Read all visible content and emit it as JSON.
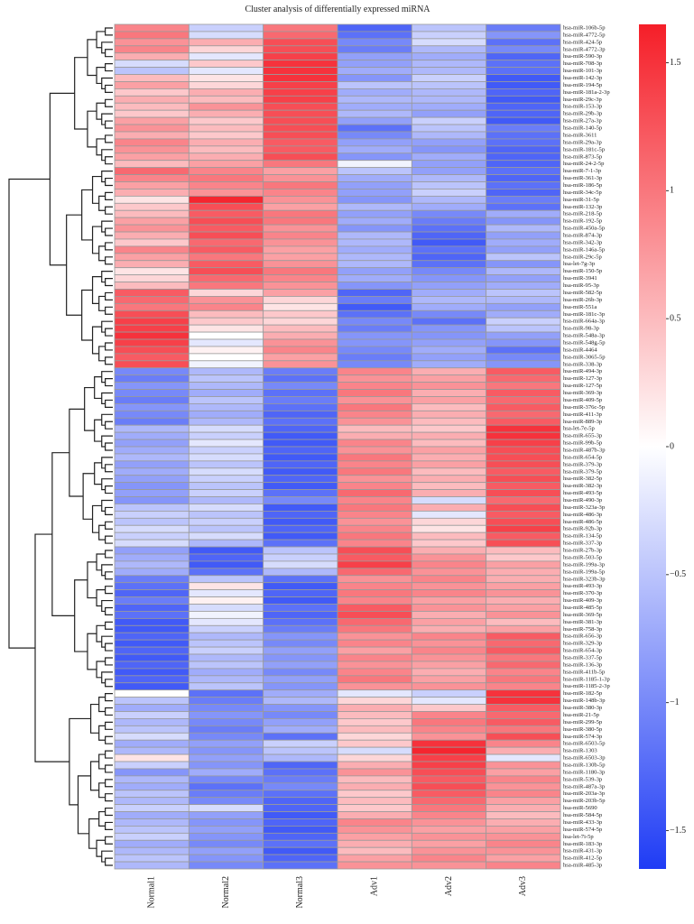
{
  "chart_data": {
    "type": "heatmap",
    "title": "Cluster analysis of differentially expressed miRNA",
    "columns": [
      "Normal1",
      "Normal2",
      "Normal3",
      "Adv1",
      "Adv2",
      "Adv3"
    ],
    "rows": [
      "hsa-miR-106b-5p",
      "hsa-miR-4772-5p",
      "hsa-miR-424-5p",
      "hsa-miR-4772-3p",
      "hsa-miR-590-3p",
      "hsa-miR-708-3p",
      "hsa-miR-101-3p",
      "hsa-miR-142-3p",
      "hsa-miR-194-5p",
      "hsa-miR-181a-2-3p",
      "hsa-miR-29c-3p",
      "hsa-miR-153-3p",
      "hsa-miR-29b-3p",
      "hsa-miR-27a-3p",
      "hsa-miR-140-5p",
      "hsa-miR-3611",
      "hsa-miR-29a-3p",
      "hsa-miR-181c-5p",
      "hsa-miR-873-5p",
      "hsa-miR-24-2-5p",
      "hsa-miR-7-1-3p",
      "hsa-miR-361-3p",
      "hsa-miR-186-5p",
      "hsa-miR-34c-5p",
      "hsa-miR-31-5p",
      "hsa-miR-132-3p",
      "hsa-miR-218-5p",
      "hsa-miR-192-5p",
      "hsa-miR-450a-5p",
      "hsa-miR-874-3p",
      "hsa-miR-342-3p",
      "hsa-miR-146a-5p",
      "hsa-miR-29c-5p",
      "hsa-let-7g-3p",
      "hsa-miR-150-5p",
      "hsa-miR-3941",
      "hsa-miR-95-3p",
      "hsa-miR-582-5p",
      "hsa-miR-26b-3p",
      "hsa-miR-551a",
      "hsa-miR-181c-3p",
      "hsa-miR-664a-3p",
      "hsa-miR-98-3p",
      "hsa-miR-548a-3p",
      "hsa-miR-548g-5p",
      "hsa-miR-4464",
      "hsa-miR-3065-5p",
      "hsa-miR-338-3p",
      "hsa-miR-494-3p",
      "hsa-miR-127-3p",
      "hsa-miR-127-5p",
      "hsa-miR-369-3p",
      "hsa-miR-409-5p",
      "hsa-miR-376c-5p",
      "hsa-miR-411-3p",
      "hsa-miR-889-3p",
      "hsa-let-7e-5p",
      "hsa-miR-655-3p",
      "hsa-miR-99b-5p",
      "hsa-miR-487b-3p",
      "hsa-miR-654-5p",
      "hsa-miR-379-3p",
      "hsa-miR-379-5p",
      "hsa-miR-382-5p",
      "hsa-miR-382-3p",
      "hsa-miR-493-5p",
      "hsa-miR-490-3p",
      "hsa-miR-323a-3p",
      "hsa-miR-486-3p",
      "hsa-miR-486-5p",
      "hsa-miR-92b-3p",
      "hsa-miR-134-5p",
      "hsa-miR-337-3p",
      "hsa-miR-27b-3p",
      "hsa-miR-503-5p",
      "hsa-miR-199a-3p",
      "hsa-miR-199a-5p",
      "hsa-miR-323b-3p",
      "hsa-miR-493-3p",
      "hsa-miR-370-3p",
      "hsa-miR-409-3p",
      "hsa-miR-485-5p",
      "hsa-miR-369-5p",
      "hsa-miR-381-3p",
      "hsa-miR-758-3p",
      "hsa-miR-656-3p",
      "hsa-miR-329-3p",
      "hsa-miR-654-3p",
      "hsa-miR-337-5p",
      "hsa-miR-136-3p",
      "hsa-miR-411b-5p",
      "hsa-miR-1185-1-3p",
      "hsa-miR-1185-2-3p",
      "hsa-miR-182-5p",
      "hsa-miR-148b-3p",
      "hsa-miR-380-3p",
      "hsa-miR-21-5p",
      "hsa-miR-299-5p",
      "hsa-miR-380-5p",
      "hsa-miR-574-3p",
      "hsa-miR-6503-5p",
      "hsa-miR-1303",
      "hsa-miR-6503-3p",
      "hsa-miR-130b-5p",
      "hsa-miR-1180-3p",
      "hsa-miR-539-3p",
      "hsa-miR-487a-3p",
      "hsa-miR-203a-3p",
      "hsa-miR-203b-5p",
      "hsa-miR-5690",
      "hsa-miR-584-5p",
      "hsa-miR-433-3p",
      "hsa-miR-574-5p",
      "hsa-let-7i-5p",
      "hsa-miR-183-3p",
      "hsa-miR-431-3p",
      "hsa-miR-412-5p",
      "hsa-miR-485-3p"
    ],
    "values": [
      [
        0.9,
        -0.4,
        1.0,
        -1.3,
        -0.5,
        -1.1
      ],
      [
        1.0,
        -0.3,
        1.1,
        -1.2,
        -0.4,
        -0.9
      ],
      [
        0.8,
        0.6,
        1.3,
        -1.0,
        -0.3,
        -1.2
      ],
      [
        0.9,
        0.3,
        1.3,
        -1.1,
        -0.6,
        -1.0
      ],
      [
        0.6,
        -0.2,
        1.4,
        -0.8,
        -0.7,
        -1.3
      ],
      [
        -0.3,
        0.4,
        1.5,
        -0.8,
        -0.6,
        -1.2
      ],
      [
        -0.5,
        -0.2,
        1.5,
        -0.7,
        -0.6,
        -1.2
      ],
      [
        0.5,
        0.2,
        1.5,
        -0.9,
        -0.4,
        -1.4
      ],
      [
        0.7,
        0.3,
        1.4,
        -0.5,
        -0.5,
        -1.4
      ],
      [
        0.4,
        0.6,
        1.4,
        -0.7,
        -0.6,
        -1.3
      ],
      [
        0.6,
        0.5,
        1.4,
        -0.6,
        -0.6,
        -1.4
      ],
      [
        0.5,
        0.8,
        1.3,
        -0.7,
        -0.7,
        -1.3
      ],
      [
        0.4,
        0.6,
        1.3,
        -0.6,
        -0.8,
        -1.3
      ],
      [
        0.7,
        0.4,
        1.3,
        -0.8,
        -0.4,
        -1.4
      ],
      [
        0.8,
        0.5,
        1.3,
        -1.2,
        -0.5,
        -1.1
      ],
      [
        0.6,
        0.4,
        1.3,
        -1.0,
        -0.6,
        -1.2
      ],
      [
        0.9,
        0.6,
        1.2,
        -0.8,
        -0.8,
        -1.2
      ],
      [
        0.8,
        0.5,
        1.2,
        -0.7,
        -0.9,
        -1.3
      ],
      [
        0.7,
        0.6,
        1.3,
        -0.9,
        -0.7,
        -1.3
      ],
      [
        0.5,
        0.7,
        1.0,
        -0.1,
        -0.8,
        -1.3
      ],
      [
        1.1,
        0.9,
        0.7,
        -0.5,
        -0.8,
        -1.2
      ],
      [
        0.9,
        1.0,
        0.8,
        -0.7,
        -0.6,
        -1.3
      ],
      [
        0.7,
        0.9,
        1.0,
        -0.8,
        -0.5,
        -1.2
      ],
      [
        0.6,
        0.8,
        0.9,
        -0.8,
        -0.4,
        -1.3
      ],
      [
        0.2,
        1.6,
        0.8,
        -0.9,
        -0.6,
        -1.1
      ],
      [
        0.4,
        1.3,
        0.7,
        -0.6,
        -0.7,
        -1.2
      ],
      [
        0.5,
        1.2,
        1.0,
        -0.8,
        -1.0,
        -0.7
      ],
      [
        0.7,
        1.3,
        1.0,
        -0.7,
        -1.1,
        -0.9
      ],
      [
        0.8,
        1.2,
        0.8,
        -0.9,
        -1.2,
        -0.6
      ],
      [
        0.6,
        1.3,
        0.9,
        -0.6,
        -1.3,
        -0.8
      ],
      [
        0.4,
        1.1,
        0.8,
        -0.6,
        -1.4,
        -0.7
      ],
      [
        0.9,
        1.2,
        0.7,
        -0.7,
        -1.2,
        -0.8
      ],
      [
        0.7,
        1.0,
        0.7,
        -0.6,
        -1.3,
        -0.5
      ],
      [
        0.6,
        1.2,
        0.8,
        -0.6,
        -1.2,
        -0.9
      ],
      [
        0.2,
        1.3,
        1.0,
        -0.8,
        -1.0,
        -0.6
      ],
      [
        0.3,
        1.1,
        0.9,
        -0.7,
        -0.9,
        -0.8
      ],
      [
        0.5,
        1.0,
        0.8,
        -0.9,
        -0.8,
        -0.7
      ],
      [
        1.2,
        0.3,
        0.7,
        -1.3,
        -0.7,
        -0.5
      ],
      [
        1.1,
        0.8,
        0.3,
        -1.1,
        -0.6,
        -0.6
      ],
      [
        1.0,
        0.9,
        0.2,
        -1.4,
        -0.7,
        -0.8
      ],
      [
        1.3,
        0.5,
        0.4,
        -1.2,
        -1.0,
        -0.7
      ],
      [
        1.4,
        0.4,
        0.3,
        -1.0,
        -1.2,
        -0.4
      ],
      [
        1.4,
        0.2,
        0.5,
        -1.1,
        -0.9,
        -0.5
      ],
      [
        1.5,
        0.0,
        0.6,
        -0.9,
        -0.9,
        -0.8
      ],
      [
        1.4,
        -0.2,
        0.8,
        -0.9,
        -0.8,
        -0.9
      ],
      [
        1.3,
        0.1,
        0.9,
        -1.0,
        -0.7,
        -1.2
      ],
      [
        1.2,
        0.0,
        0.7,
        -1.1,
        -0.8,
        -1.0
      ],
      [
        1.3,
        -0.1,
        0.8,
        -1.0,
        -0.7,
        -0.9
      ],
      [
        -1.0,
        -0.6,
        -1.1,
        0.9,
        0.6,
        1.2
      ],
      [
        -1.1,
        -0.5,
        -1.2,
        0.8,
        0.7,
        1.1
      ],
      [
        -0.9,
        -0.6,
        -1.0,
        0.9,
        0.8,
        1.0
      ],
      [
        -1.0,
        -0.7,
        -1.2,
        1.0,
        0.6,
        1.2
      ],
      [
        -1.1,
        -0.5,
        -1.1,
        0.8,
        0.7,
        1.1
      ],
      [
        -0.9,
        -0.6,
        -1.2,
        1.0,
        0.5,
        1.2
      ],
      [
        -1.0,
        -0.7,
        -1.3,
        0.9,
        0.6,
        1.1
      ],
      [
        -1.1,
        -0.6,
        -1.2,
        0.8,
        0.5,
        1.2
      ],
      [
        -0.6,
        -0.3,
        -1.3,
        0.5,
        0.4,
        1.5
      ],
      [
        -0.7,
        -0.4,
        -1.4,
        0.6,
        0.6,
        1.5
      ],
      [
        -0.8,
        -0.2,
        -1.4,
        0.9,
        0.5,
        1.4
      ],
      [
        -0.7,
        -0.4,
        -1.3,
        0.8,
        0.7,
        1.3
      ],
      [
        -0.6,
        -0.3,
        -1.4,
        1.0,
        0.6,
        1.3
      ],
      [
        -0.8,
        -0.5,
        -1.3,
        0.9,
        0.7,
        1.3
      ],
      [
        -0.7,
        -0.3,
        -1.4,
        1.0,
        0.5,
        1.2
      ],
      [
        -0.8,
        -0.4,
        -1.3,
        0.8,
        0.6,
        1.3
      ],
      [
        -0.9,
        -0.5,
        -1.4,
        0.9,
        0.5,
        1.2
      ],
      [
        -0.8,
        -0.4,
        -1.2,
        1.1,
        0.6,
        1.3
      ],
      [
        -0.9,
        -0.6,
        -1.0,
        0.9,
        -0.3,
        1.1
      ],
      [
        -0.5,
        -0.3,
        -1.4,
        1.0,
        0.6,
        1.3
      ],
      [
        -0.4,
        -0.5,
        -1.3,
        0.9,
        -0.2,
        1.2
      ],
      [
        -0.5,
        -0.4,
        -1.4,
        0.8,
        0.3,
        1.3
      ],
      [
        -0.3,
        -0.5,
        -1.3,
        0.9,
        0.2,
        1.4
      ],
      [
        -0.4,
        -0.3,
        -1.4,
        1.0,
        0.5,
        1.2
      ],
      [
        -0.3,
        -0.6,
        -1.2,
        0.9,
        0.4,
        1.3
      ],
      [
        -0.8,
        -1.4,
        -0.5,
        1.3,
        0.6,
        0.5
      ],
      [
        -0.7,
        -1.3,
        -0.4,
        1.2,
        0.8,
        0.4
      ],
      [
        -0.6,
        -1.4,
        -0.3,
        1.4,
        0.9,
        0.7
      ],
      [
        -0.7,
        -1.2,
        -0.6,
        1.1,
        0.8,
        0.6
      ],
      [
        -1.1,
        -0.5,
        -1.2,
        0.8,
        0.9,
        0.6
      ],
      [
        -1.2,
        0.2,
        -1.4,
        0.9,
        0.8,
        0.7
      ],
      [
        -1.3,
        -0.2,
        -1.3,
        1.0,
        0.9,
        0.8
      ],
      [
        -1.1,
        0.1,
        -1.4,
        0.9,
        0.7,
        0.6
      ],
      [
        -1.3,
        -0.3,
        -1.2,
        1.2,
        0.8,
        0.7
      ],
      [
        -1.2,
        -0.1,
        -1.3,
        1.3,
        0.6,
        0.8
      ],
      [
        -1.4,
        -0.2,
        -1.2,
        1.1,
        0.7,
        0.5
      ],
      [
        -1.4,
        -0.4,
        -1.1,
        1.0,
        0.6,
        0.7
      ],
      [
        -1.3,
        -0.6,
        -0.9,
        0.8,
        0.9,
        1.2
      ],
      [
        -1.4,
        -0.5,
        -1.0,
        0.9,
        0.8,
        1.1
      ],
      [
        -1.3,
        -0.4,
        -0.8,
        0.7,
        0.9,
        1.2
      ],
      [
        -1.4,
        -0.6,
        -0.9,
        0.9,
        0.8,
        1.0
      ],
      [
        -1.3,
        -0.5,
        -0.8,
        0.8,
        0.7,
        1.1
      ],
      [
        -1.4,
        -0.7,
        -1.0,
        0.9,
        0.6,
        0.9
      ],
      [
        -1.3,
        -0.6,
        -0.8,
        1.0,
        0.7,
        1.0
      ],
      [
        -1.4,
        -0.5,
        -0.9,
        0.8,
        0.8,
        0.9
      ],
      [
        0.0,
        -1.2,
        -0.7,
        -0.2,
        -0.4,
        1.5
      ],
      [
        -0.5,
        -1.1,
        -0.6,
        0.3,
        -0.2,
        1.5
      ],
      [
        -0.7,
        -1.0,
        -0.9,
        0.6,
        0.4,
        1.2
      ],
      [
        -0.4,
        -0.9,
        -1.0,
        0.5,
        0.9,
        1.1
      ],
      [
        -0.6,
        -1.0,
        -0.8,
        0.4,
        1.0,
        1.2
      ],
      [
        -0.5,
        -1.1,
        -0.7,
        0.5,
        0.9,
        1.0
      ],
      [
        -0.3,
        -1.0,
        -1.2,
        0.3,
        0.8,
        1.3
      ],
      [
        -0.7,
        -0.8,
        -0.4,
        0.4,
        1.5,
        0.9
      ],
      [
        -0.6,
        -0.9,
        -0.5,
        -0.3,
        1.6,
        0.6
      ],
      [
        0.2,
        -0.8,
        -0.6,
        0.3,
        1.4,
        -0.2
      ],
      [
        -0.4,
        -0.9,
        -1.3,
        0.6,
        1.4,
        0.8
      ],
      [
        -0.9,
        -0.7,
        -1.2,
        0.8,
        1.3,
        0.7
      ],
      [
        -0.6,
        -1.0,
        -1.1,
        0.5,
        1.2,
        0.9
      ],
      [
        -0.7,
        -1.2,
        -1.0,
        0.6,
        1.3,
        0.8
      ],
      [
        -0.5,
        -1.1,
        -1.2,
        0.4,
        1.2,
        0.9
      ],
      [
        -0.6,
        -1.0,
        -1.3,
        0.5,
        1.1,
        0.7
      ],
      [
        -0.4,
        -0.3,
        -1.3,
        0.4,
        1.0,
        0.6
      ],
      [
        -0.7,
        -0.8,
        -1.4,
        0.6,
        0.9,
        0.5
      ],
      [
        -0.6,
        -0.9,
        -1.3,
        0.9,
        0.8,
        0.6
      ],
      [
        -0.5,
        -0.8,
        -1.4,
        0.8,
        0.7,
        0.7
      ],
      [
        -0.4,
        -0.9,
        -1.3,
        0.7,
        0.8,
        0.8
      ],
      [
        -0.7,
        -1.0,
        -1.2,
        0.6,
        0.7,
        0.9
      ],
      [
        -0.6,
        -0.8,
        -1.4,
        0.5,
        0.8,
        0.8
      ],
      [
        -0.5,
        -0.9,
        -1.3,
        0.7,
        0.9,
        0.7
      ],
      [
        -0.6,
        -1.0,
        -1.2,
        0.8,
        0.8,
        0.9
      ]
    ],
    "zlim": [
      -1.65,
      1.65
    ],
    "zticks": [
      1.5,
      1,
      0.5,
      {
        "value": -0.5,
        "label": "−0.5"
      },
      0,
      {
        "value": -1,
        "label": "−1"
      },
      {
        "value": -1.5,
        "label": "−1.5"
      }
    ],
    "colormap": [
      "#1f3cf5",
      "#ffffff",
      "#f51e28"
    ]
  }
}
